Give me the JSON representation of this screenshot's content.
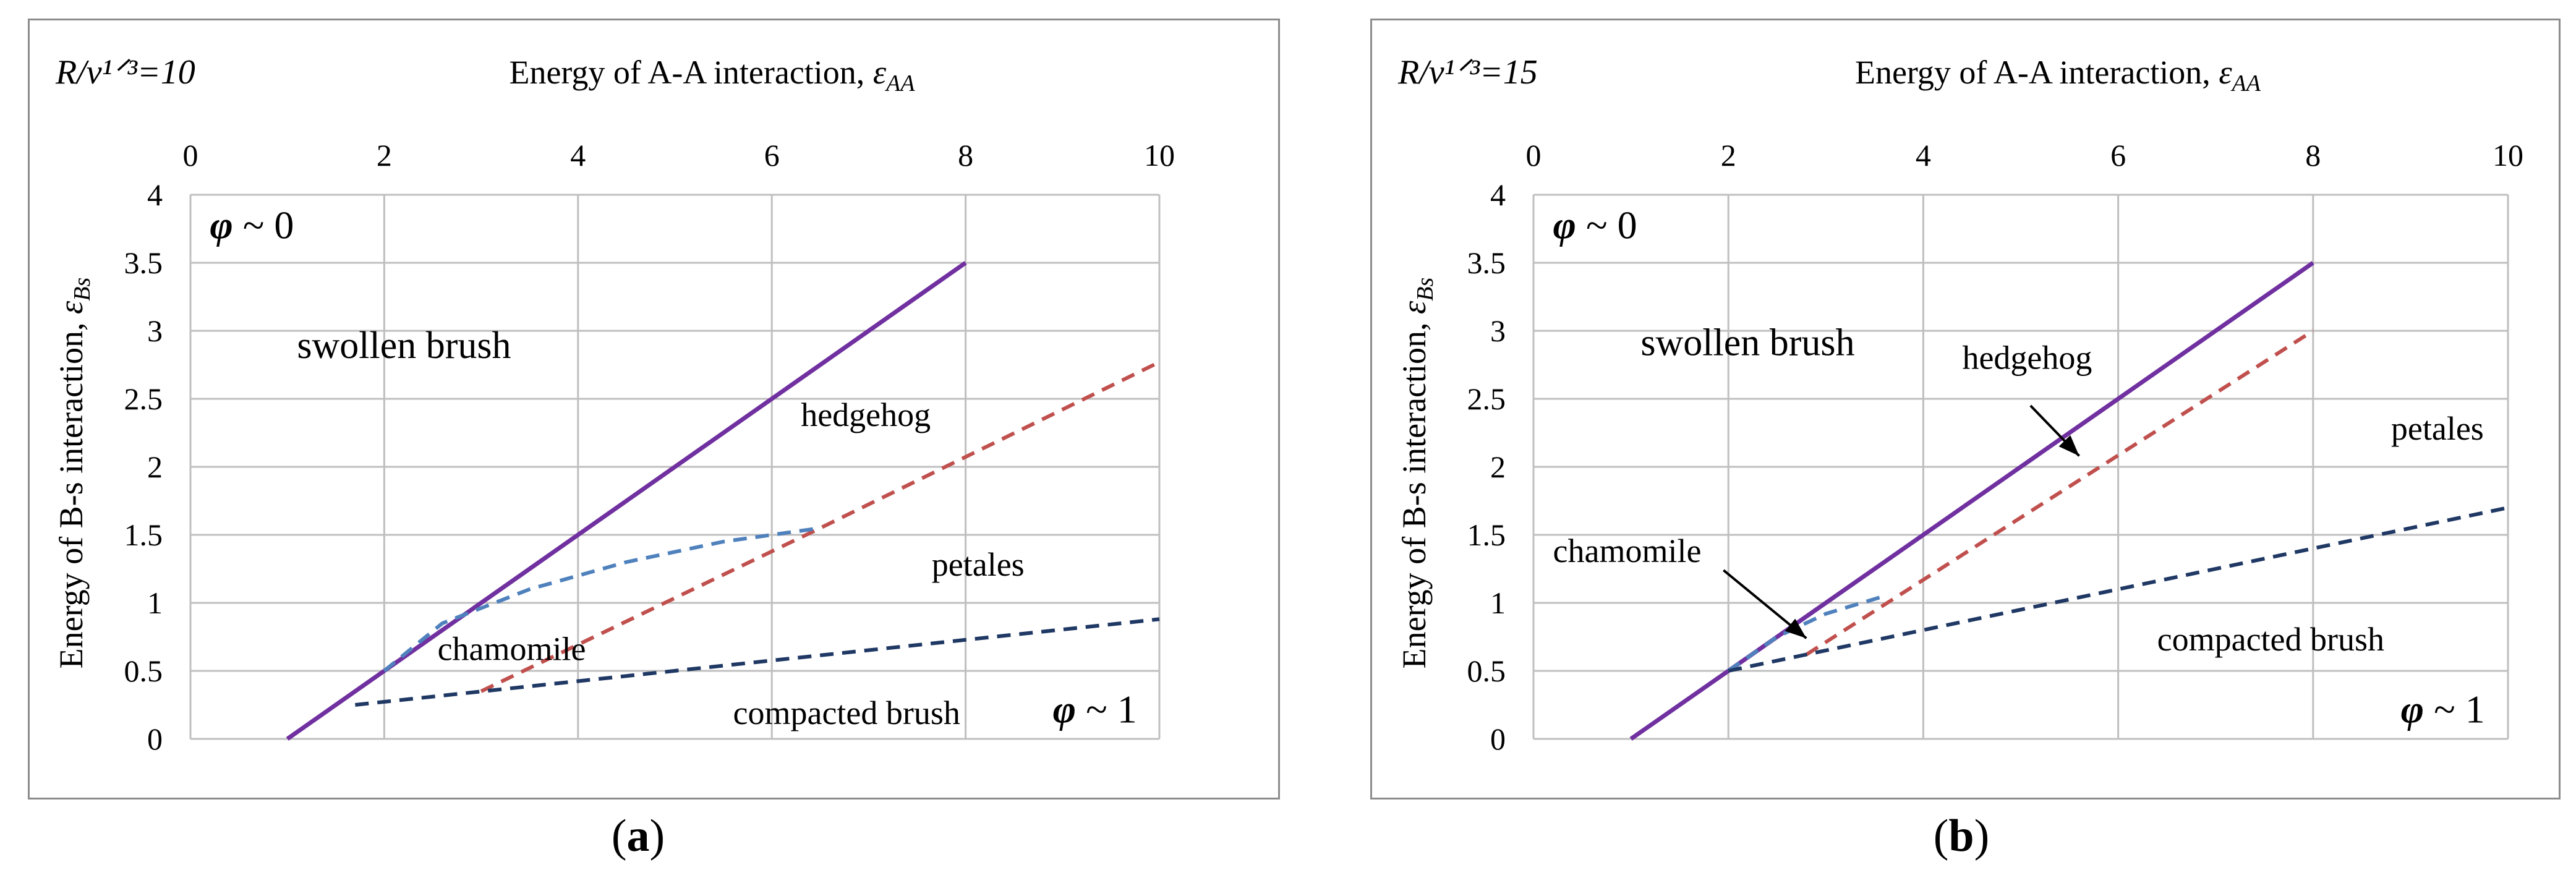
{
  "panel_a": {
    "caption_label": "a",
    "ratio_label": "R/v¹ᐟ³=10",
    "colors": {
      "purple": "#7030a0",
      "red": "#c0504d",
      "blue": "#4f81bd",
      "navy": "#1f3864",
      "grid": "#bfbfbf"
    },
    "chart_data": {
      "type": "line",
      "title": "",
      "xlabel": "Energy of A-A interaction, ε_AA",
      "ylabel": "Energy of B-s interaction, ε_Bs",
      "xlim": [
        0,
        10
      ],
      "ylim": [
        0,
        4
      ],
      "x_ticks": [
        "0",
        "2",
        "4",
        "6",
        "8",
        "10"
      ],
      "y_ticks": [
        "0",
        "0.5",
        "1",
        "1.5",
        "2",
        "2.5",
        "3",
        "3.5",
        "4"
      ],
      "series": [
        {
          "name": "swollen/hedgehog boundary",
          "style": "solid",
          "color": "#7030a0",
          "x": [
            1,
            8
          ],
          "y": [
            0,
            3.5
          ]
        },
        {
          "name": "hedgehog/petales boundary",
          "style": "dashed",
          "color": "#c0504d",
          "x": [
            3,
            6.5,
            10
          ],
          "y": [
            0.35,
            1.55,
            2.77
          ]
        },
        {
          "name": "chamomile boundary",
          "style": "dashed",
          "color": "#4f81bd",
          "x": [
            2,
            2.6,
            3.5,
            4.5,
            5.5,
            6.5
          ],
          "y": [
            0.5,
            0.85,
            1.1,
            1.3,
            1.45,
            1.55
          ]
        },
        {
          "name": "compacted brush boundary",
          "style": "dashed",
          "color": "#1f3864",
          "x": [
            1.7,
            10
          ],
          "y": [
            0.25,
            0.88
          ]
        }
      ],
      "annotations": [
        {
          "text": "φ ~ 0",
          "x": 0.2,
          "y": 3.68
        },
        {
          "text": "swollen brush",
          "x": 1.1,
          "y": 2.8
        },
        {
          "text": "hedgehog",
          "x": 6.3,
          "y": 2.3
        },
        {
          "text": "petales",
          "x": 7.65,
          "y": 1.2
        },
        {
          "text": "chamomile",
          "x": 2.55,
          "y": 0.58
        },
        {
          "text": "compacted brush",
          "x": 5.6,
          "y": 0.11
        },
        {
          "text": "φ ~ 1",
          "x": 8.9,
          "y": 0.12
        }
      ]
    }
  },
  "panel_b": {
    "caption_label": "b",
    "ratio_label": "R/v¹ᐟ³=15",
    "colors": {
      "purple": "#7030a0",
      "red": "#c0504d",
      "blue": "#4f81bd",
      "navy": "#1f3864",
      "grid": "#bfbfbf"
    },
    "chart_data": {
      "type": "line",
      "title": "",
      "xlabel": "Energy of A-A interaction, ε_AA",
      "ylabel": "Energy of B-s interaction, ε_Bs",
      "xlim": [
        0,
        10
      ],
      "ylim": [
        0,
        4
      ],
      "x_ticks": [
        "0",
        "2",
        "4",
        "6",
        "8",
        "10"
      ],
      "y_ticks": [
        "0",
        "0.5",
        "1",
        "1.5",
        "2",
        "2.5",
        "3",
        "3.5",
        "4"
      ],
      "series": [
        {
          "name": "swollen/hedgehog boundary",
          "style": "solid",
          "color": "#7030a0",
          "x": [
            1,
            8
          ],
          "y": [
            0,
            3.5
          ]
        },
        {
          "name": "hedgehog/petales boundary",
          "style": "dashed",
          "color": "#c0504d",
          "x": [
            2.8,
            8
          ],
          "y": [
            0.62,
            3.0
          ]
        },
        {
          "name": "chamomile boundary",
          "style": "dashed",
          "color": "#4f81bd",
          "x": [
            2,
            2.5,
            3.0,
            3.6
          ],
          "y": [
            0.5,
            0.75,
            0.92,
            1.05
          ]
        },
        {
          "name": "compacted brush boundary",
          "style": "dashed",
          "color": "#1f3864",
          "x": [
            2,
            10
          ],
          "y": [
            0.5,
            1.7
          ]
        }
      ],
      "annotations": [
        {
          "text": "φ ~ 0",
          "x": 0.2,
          "y": 3.68
        },
        {
          "text": "swollen brush",
          "x": 1.1,
          "y": 2.82
        },
        {
          "text": "hedgehog",
          "x": 4.4,
          "y": 2.72
        },
        {
          "text": "petales",
          "x": 8.8,
          "y": 2.2
        },
        {
          "text": "chamomile",
          "x": 0.2,
          "y": 1.3
        },
        {
          "text": "compacted brush",
          "x": 6.4,
          "y": 0.65
        },
        {
          "text": "φ ~ 1",
          "x": 8.9,
          "y": 0.12
        }
      ],
      "arrows": [
        {
          "from": [
            5.1,
            2.45
          ],
          "to": [
            5.6,
            2.08
          ]
        },
        {
          "from": [
            1.95,
            1.24
          ],
          "to": [
            2.8,
            0.74
          ]
        }
      ]
    }
  }
}
